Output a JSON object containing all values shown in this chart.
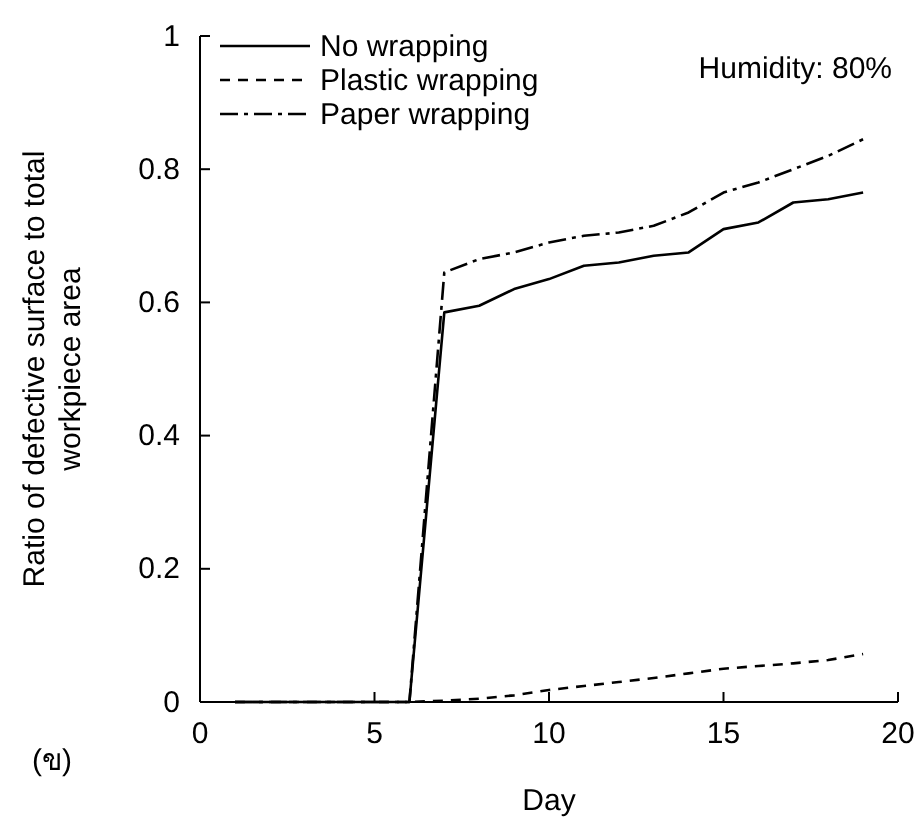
{
  "chart_data": {
    "type": "line",
    "xlabel": "Day",
    "ylabel": "Ratio of defective surface to total\nworkpiece area",
    "x": [
      1,
      2,
      3,
      4,
      5,
      6,
      7,
      8,
      9,
      10,
      11,
      12,
      13,
      14,
      15,
      16,
      17,
      18,
      19
    ],
    "series": [
      {
        "name": "No wrapping",
        "color": "#000000",
        "line_style": "solid",
        "values": [
          0,
          0,
          0,
          0,
          0,
          0,
          0.585,
          0.595,
          0.62,
          0.635,
          0.655,
          0.66,
          0.67,
          0.675,
          0.71,
          0.72,
          0.75,
          0.755,
          0.765
        ]
      },
      {
        "name": "Plastic wrapping",
        "color": "#000000",
        "line_style": "dashed",
        "values": [
          0,
          0,
          0,
          0,
          0,
          0,
          0.002,
          0.005,
          0.01,
          0.018,
          0.024,
          0.03,
          0.036,
          0.043,
          0.05,
          0.054,
          0.058,
          0.063,
          0.072
        ]
      },
      {
        "name": "Paper wrapping",
        "color": "#000000",
        "line_style": "dashdot",
        "values": [
          0,
          0,
          0,
          0,
          0,
          0,
          0.645,
          0.665,
          0.675,
          0.69,
          0.7,
          0.705,
          0.715,
          0.735,
          0.765,
          0.78,
          0.8,
          0.82,
          0.845
        ]
      }
    ],
    "xlim": [
      0,
      20
    ],
    "xticks": [
      0,
      5,
      10,
      15,
      20
    ],
    "ylim": [
      0,
      1
    ],
    "yticks": [
      0,
      0.2,
      0.4,
      0.6,
      0.8,
      1
    ],
    "grid": false,
    "legend": "top left",
    "marker": "none",
    "annotations": [
      "Humidity: 80%",
      "(ข)"
    ]
  }
}
